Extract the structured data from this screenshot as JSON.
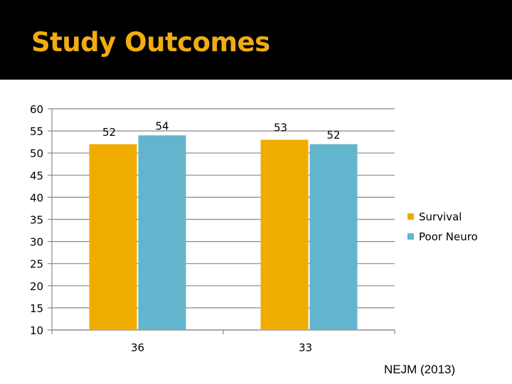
{
  "slide": {
    "title": "Study Outcomes",
    "source": "NEJM (2013)"
  },
  "colors": {
    "title_bar": "#000000",
    "title_text": "#f0ad12",
    "survival": "#f0ad00",
    "poor_neuro": "#63b5cd",
    "gridline": "#888888"
  },
  "chart_data": {
    "type": "bar",
    "categories": [
      "36",
      "33"
    ],
    "series": [
      {
        "name": "Survival",
        "values": [
          52,
          53
        ]
      },
      {
        "name": "Poor Neuro",
        "values": [
          54,
          52
        ]
      }
    ],
    "ylim": [
      10,
      60
    ],
    "yticks": [
      60,
      55,
      50,
      45,
      40,
      35,
      30,
      25,
      20,
      15,
      10
    ],
    "grid": true,
    "legend": "right",
    "data_labels": true
  }
}
